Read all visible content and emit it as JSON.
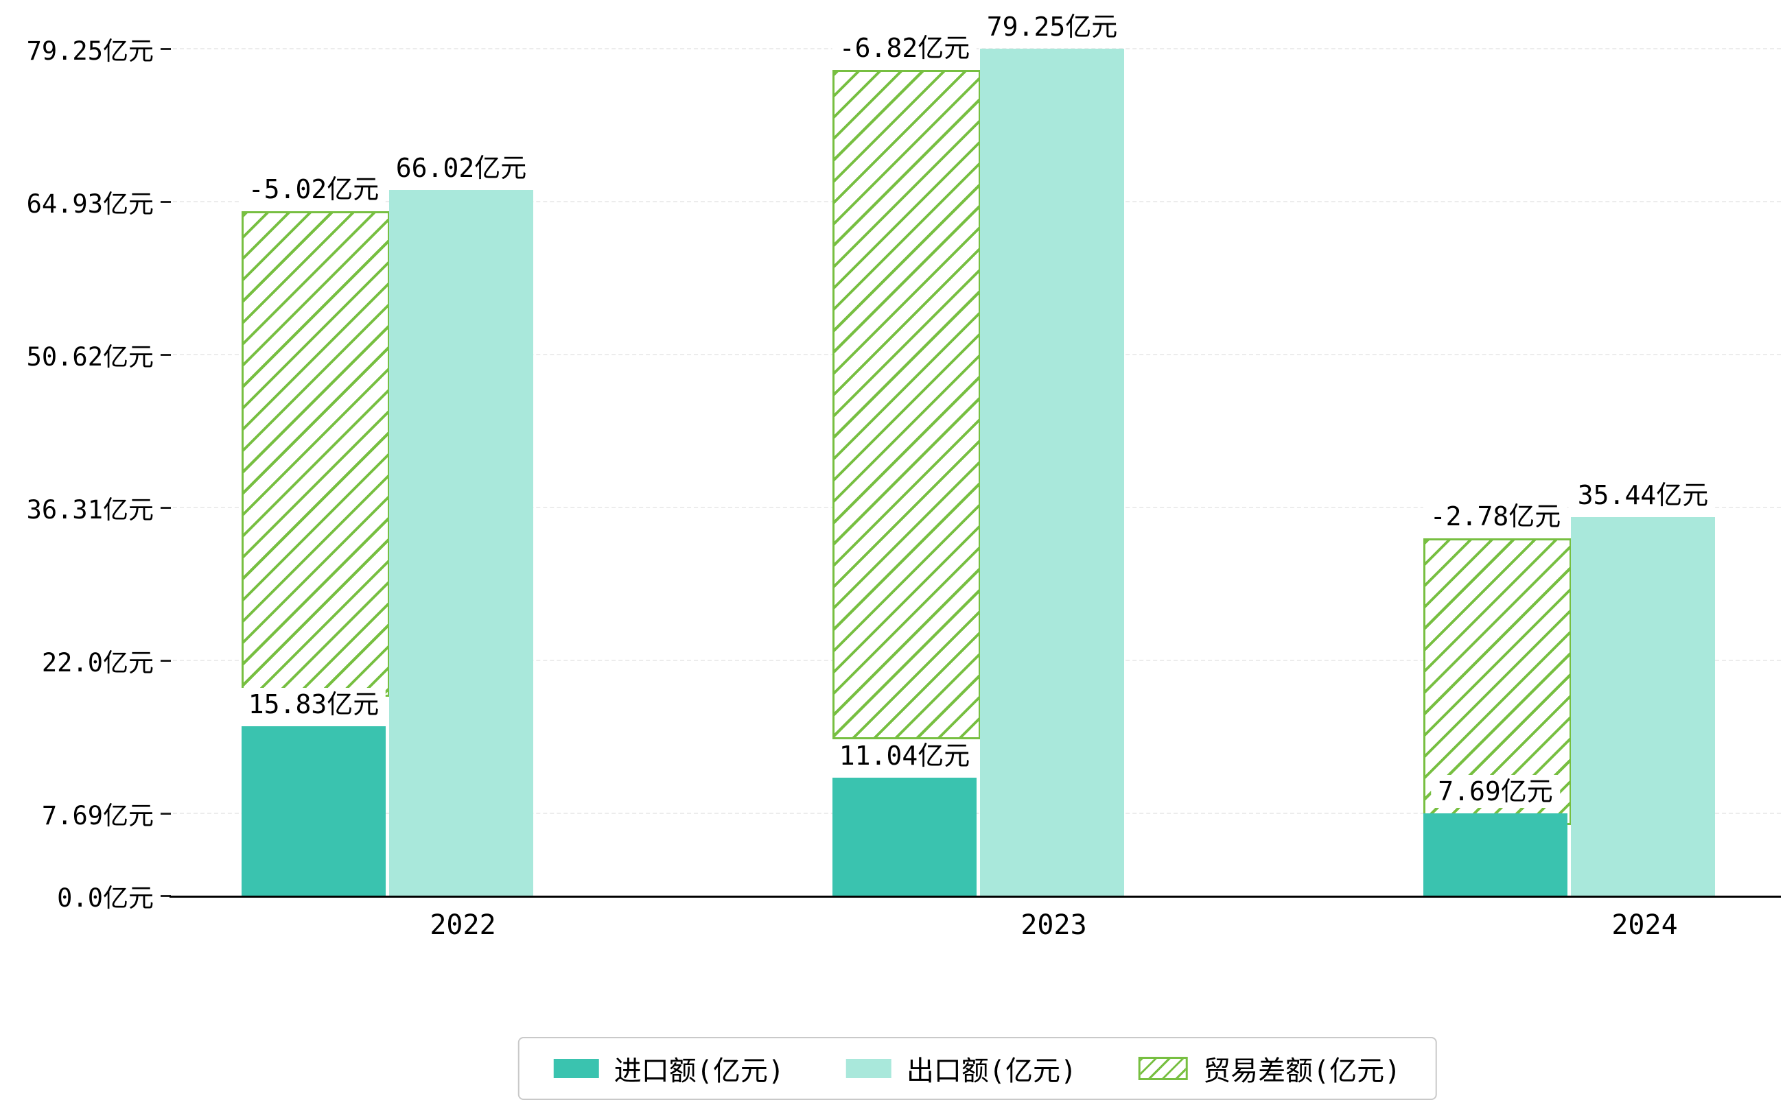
{
  "chart_data": {
    "type": "bar",
    "title": "",
    "xlabel": "",
    "ylabel": "",
    "unit": "亿元",
    "categories": [
      "2022",
      "2023",
      "2024"
    ],
    "series": [
      {
        "name": "进口额(亿元)",
        "values": [
          15.83,
          11.04,
          7.69
        ],
        "value_labels": [
          "15.83亿元",
          "11.04亿元",
          "7.69亿元"
        ],
        "color": "#3AC3AF",
        "style": "solid"
      },
      {
        "name": "出口额(亿元)",
        "values": [
          66.02,
          79.25,
          35.44
        ],
        "value_labels": [
          "66.02亿元",
          "79.25亿元",
          "35.44亿元"
        ],
        "color": "#A9E8DB",
        "style": "solid"
      },
      {
        "name": "贸易差额(亿元)",
        "values": [
          -5.02,
          -6.82,
          -2.78
        ],
        "value_labels": [
          "-5.02亿元",
          "-6.82亿元",
          "-2.78亿元"
        ],
        "color": "#77BF41",
        "style": "hatched",
        "bar_spans": [
          [
            19.0,
            64.02
          ],
          [
            15.0,
            77.25
          ],
          [
            7.0,
            33.44
          ]
        ]
      }
    ],
    "y_ticks": [
      {
        "value": 0.0,
        "label": "0.0亿元"
      },
      {
        "value": 7.69,
        "label": "7.69亿元"
      },
      {
        "value": 22.0,
        "label": "22.0亿元"
      },
      {
        "value": 36.31,
        "label": "36.31亿元"
      },
      {
        "value": 50.62,
        "label": "50.62亿元"
      },
      {
        "value": 64.93,
        "label": "64.93亿元"
      },
      {
        "value": 79.25,
        "label": "79.25亿元"
      }
    ],
    "ylim": [
      0,
      82
    ],
    "grid": true,
    "legend_position": "bottom"
  },
  "colors": {
    "import_bar": "#3AC3AF",
    "export_bar": "#A9E8DB",
    "balance_hatch": "#77BF41",
    "axis": "#000000",
    "gridline": "#ececec",
    "legend_border": "#c9c9c9",
    "background": "#ffffff"
  }
}
